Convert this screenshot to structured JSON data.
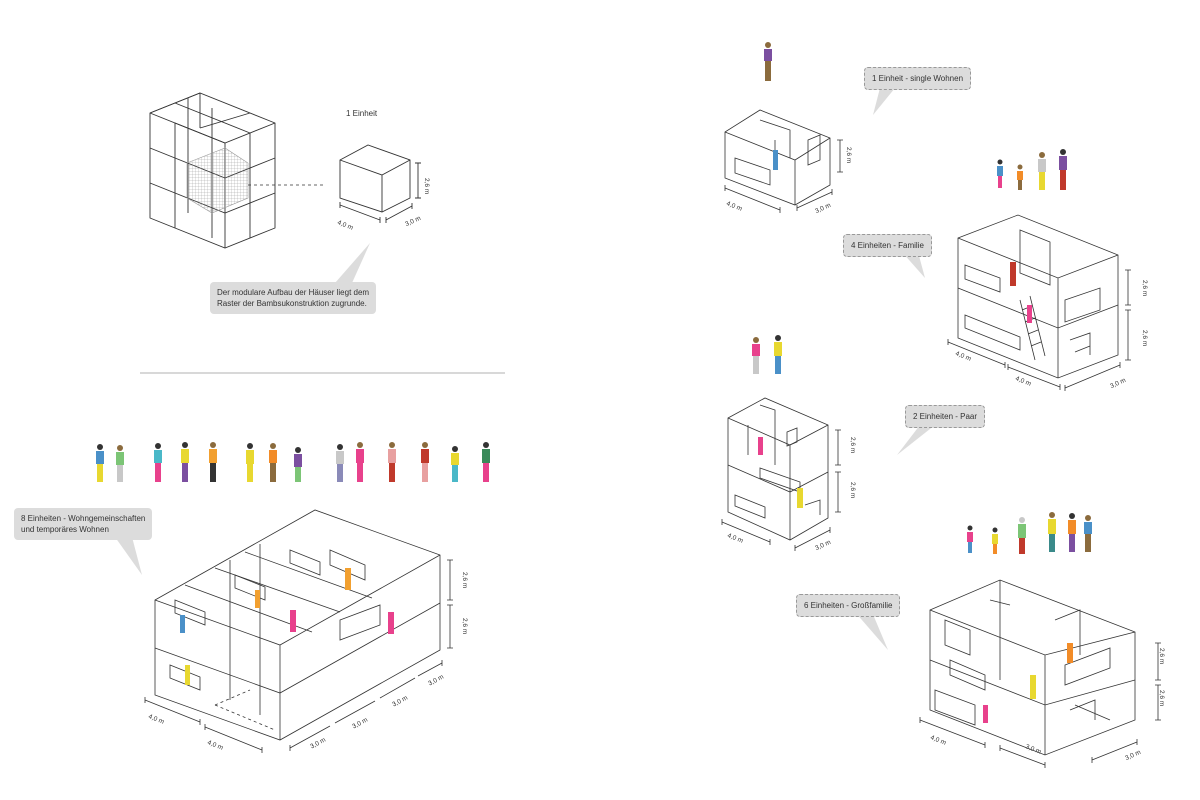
{
  "module": {
    "label": "1 Einheit",
    "height": "2,6 m",
    "width": "4,0 m",
    "depth": "3,0 m",
    "caption": [
      "Der modulare Aufbau der Häuser liegt dem",
      "Raster der Bambsukonstruktion zugrunde."
    ]
  },
  "units": {
    "single": {
      "label": "1 Einheit - single Wohnen",
      "height": "2,6 m",
      "width": "4,0 m",
      "depth": "3,0 m"
    },
    "family": {
      "label": "4 Einheiten - Familie",
      "height_top": "2,6 m",
      "height_bottom": "2,6 m",
      "width_a": "4,0 m",
      "width_b": "4,0 m",
      "depth": "3,0 m"
    },
    "couple": {
      "label": "2 Einheiten - Paar",
      "height_top": "2,6 m",
      "height_bottom": "2,6 m",
      "width": "4,0 m",
      "depth": "3,0 m"
    },
    "large_family": {
      "label": "6 Einheiten - Großfamilie",
      "height_top": "2,6 m",
      "height_bottom": "2,6 m",
      "width": "4,0 m",
      "depth_a": "3,0 m",
      "depth_b": "3,0 m"
    },
    "shared": {
      "label": [
        "8 Einheiten - Wohngemeinschaften",
        "und temporäres Wohnen"
      ],
      "height_top": "2,6 m",
      "height_bottom": "2,6 m",
      "width_a": "4,0 m",
      "width_b": "4,0 m",
      "depth_a": "3,0 m",
      "depth_b": "3,0 m",
      "depth_c": "3,0 m",
      "depth_d": "3,0 m"
    }
  },
  "colors": {
    "line": "#333333",
    "bubble": "#dcdcdc",
    "hatch": "#999999",
    "people": [
      "#e8d830",
      "#e8418c",
      "#4a90c8",
      "#7cc576",
      "#f28c28",
      "#7b4fa0",
      "#c0392b",
      "#8b6b3d"
    ]
  }
}
